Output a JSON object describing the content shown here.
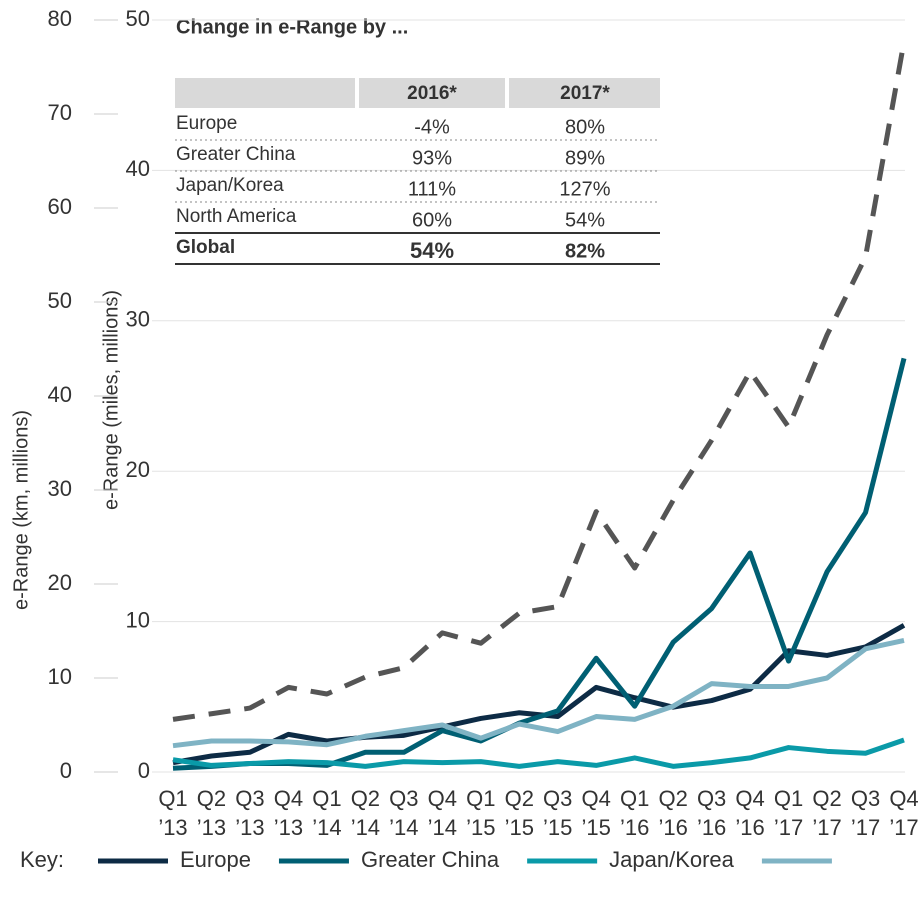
{
  "chart_data": {
    "type": "line",
    "y_label": "e-Range (km, millions)",
    "y2_label": "e-Range (miles, millions)",
    "categories": [
      "Q1\n’13",
      "Q2\n’13",
      "Q3\n’13",
      "Q4\n’13",
      "Q1\n’14",
      "Q2\n’14",
      "Q3\n’14",
      "Q4\n’14",
      "Q1\n’15",
      "Q2\n’15",
      "Q3\n’15",
      "Q4\n’15",
      "Q1\n’16",
      "Q2\n’16",
      "Q3\n’16",
      "Q4\n’16",
      "Q1\n’17",
      "Q2\n’17",
      "Q3\n’17",
      "Q4\n’17"
    ],
    "ylim": [
      0,
      80
    ],
    "yticks": [
      0,
      10,
      20,
      30,
      40,
      50,
      60,
      70,
      80
    ],
    "y2lim": [
      0,
      50
    ],
    "y2ticks": [
      0,
      10,
      20,
      30,
      40,
      50
    ],
    "grid": true,
    "legend_title": "Key:",
    "series": [
      {
        "color": "#555555",
        "dash": true,
        "values": [
          5.6,
          6.2,
          6.8,
          9.0,
          8.3,
          10.1,
          11.1,
          14.8,
          13.7,
          16.9,
          17.6,
          27.7,
          21.7,
          28.9,
          35.3,
          42.6,
          36.7,
          46.5,
          54.8,
          77.7
        ]
      },
      {
        "name": "Europe",
        "color": "#0d2b45",
        "values": [
          1.0,
          1.7,
          2.1,
          4.0,
          3.3,
          3.7,
          3.9,
          4.8,
          5.7,
          6.3,
          5.9,
          9.0,
          7.9,
          6.9,
          7.6,
          8.8,
          12.9,
          12.4,
          13.3,
          15.6
        ]
      },
      {
        "name": "Greater China",
        "color": "#005f73",
        "values": [
          0.4,
          0.6,
          0.9,
          0.9,
          0.7,
          2.1,
          2.1,
          4.4,
          3.3,
          5.2,
          6.5,
          12.1,
          7.0,
          13.8,
          17.4,
          23.3,
          11.8,
          21.3,
          27.6,
          44.0
        ]
      },
      {
        "name": "Japan/Korea",
        "color": "#0a9aa8",
        "values": [
          1.3,
          0.7,
          0.9,
          1.1,
          1.0,
          0.6,
          1.1,
          1.0,
          1.1,
          0.6,
          1.1,
          0.7,
          1.5,
          0.6,
          1.0,
          1.5,
          2.6,
          2.2,
          2.0,
          3.4
        ]
      },
      {
        "color": "#7fb3c4",
        "values": [
          2.8,
          3.3,
          3.3,
          3.2,
          2.9,
          3.8,
          4.4,
          5.0,
          3.6,
          5.1,
          4.3,
          5.9,
          5.6,
          7.0,
          9.4,
          9.1,
          9.1,
          10.0,
          13.1,
          14.0
        ]
      }
    ]
  },
  "table": {
    "title": "Change in e-Range by ...",
    "columns": [
      "2016*",
      "2017*"
    ],
    "rows": [
      {
        "label": "Europe",
        "values": [
          "-4%",
          "80%"
        ]
      },
      {
        "label": "Greater China",
        "values": [
          "93%",
          "89%"
        ]
      },
      {
        "label": "Japan/Korea",
        "values": [
          "111%",
          "127%"
        ]
      },
      {
        "label": "North America",
        "values": [
          "60%",
          "54%"
        ]
      },
      {
        "label": "Global",
        "values": [
          "54%",
          "82%"
        ]
      }
    ]
  }
}
